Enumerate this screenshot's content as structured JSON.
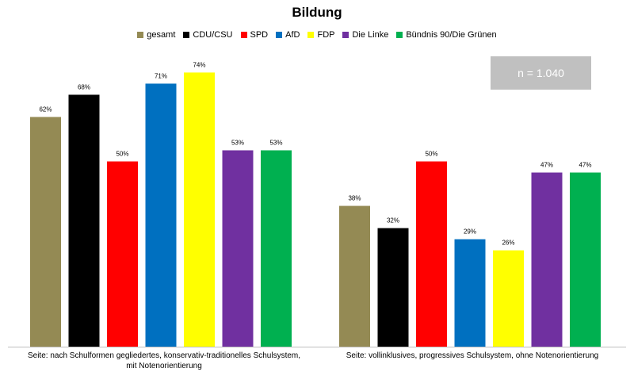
{
  "chart_data": {
    "type": "bar",
    "title": "Bildung",
    "categories": [
      "Seite: nach Schulformen gegliedertes, konservativ-traditionelles Schulsystem, mit Notenorientierung",
      "Seite: vollinklusives, progressives Schulsystem, ohne Notenorientierung"
    ],
    "series": [
      {
        "name": "gesamt",
        "color": "#948a54",
        "values": [
          62,
          38
        ]
      },
      {
        "name": "CDU/CSU",
        "color": "#000000",
        "values": [
          68,
          32
        ]
      },
      {
        "name": "SPD",
        "color": "#ff0000",
        "values": [
          50,
          50
        ]
      },
      {
        "name": "AfD",
        "color": "#0070c0",
        "values": [
          71,
          29
        ]
      },
      {
        "name": "FDP",
        "color": "#ffff00",
        "values": [
          74,
          26
        ]
      },
      {
        "name": "Die Linke",
        "color": "#7030a0",
        "values": [
          53,
          47
        ]
      },
      {
        "name": "Bündnis 90/Die Grünen",
        "color": "#00b050",
        "values": [
          53,
          47
        ]
      }
    ],
    "value_suffix": "%",
    "ylim": [
      0,
      100
    ],
    "grid": false,
    "legend_position": "top",
    "annotation": "n = 1.040"
  }
}
